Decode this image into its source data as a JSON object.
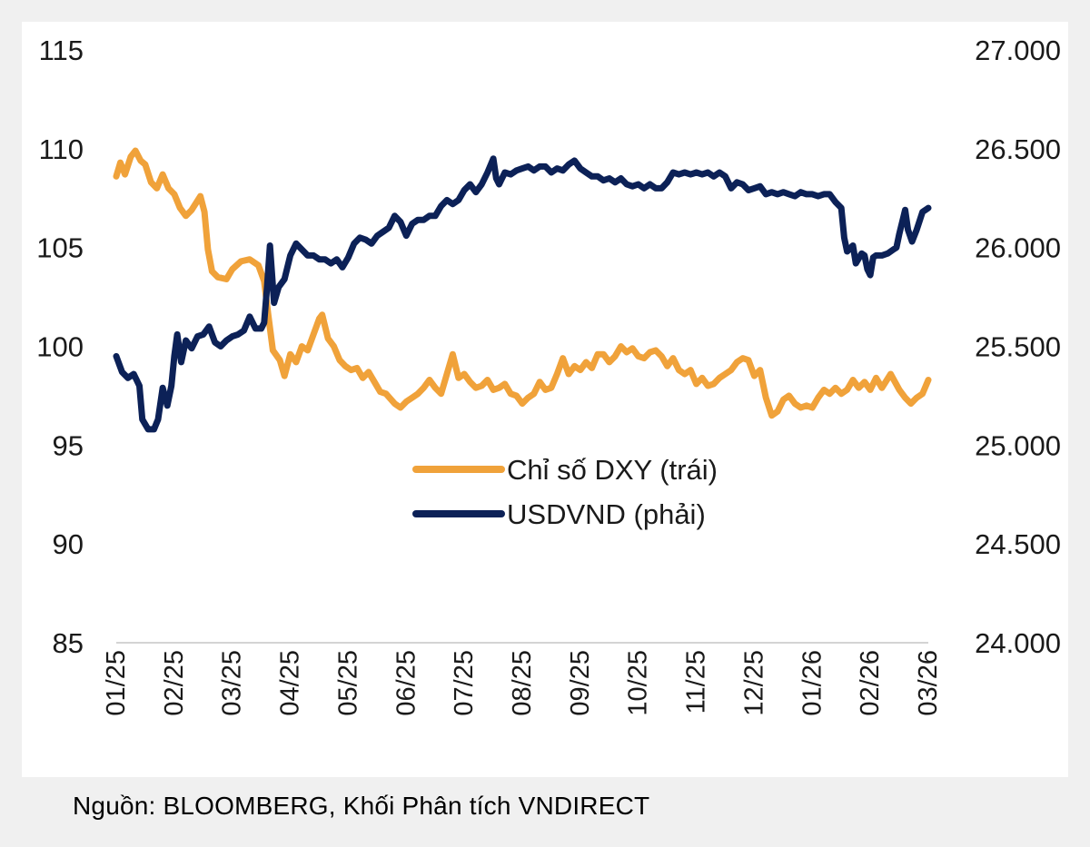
{
  "colors": {
    "dxy": "#f0a23a",
    "usdvnd": "#0c2157",
    "axis": "#d4d4d4",
    "text": "#1a1a1a"
  },
  "source": "Nguồn: BLOOMBERG, Khối Phân tích VNDIRECT",
  "chart_data": {
    "type": "line",
    "title": "",
    "x_tick_labels": [
      "01/25",
      "02/25",
      "03/25",
      "04/25",
      "05/25",
      "06/25",
      "07/25",
      "08/25",
      "09/25",
      "10/25",
      "11/25",
      "12/25",
      "01/26",
      "02/26",
      "03/26"
    ],
    "x_range": [
      0,
      14
    ],
    "y_left": {
      "range": [
        85,
        115
      ],
      "ticks": [
        85,
        90,
        95,
        100,
        105,
        110,
        115
      ],
      "tick_labels": [
        "85",
        "90",
        "95",
        "100",
        "105",
        "110",
        "115"
      ]
    },
    "y_right": {
      "range": [
        24000,
        27000
      ],
      "ticks": [
        24000,
        24500,
        25000,
        25500,
        26000,
        26500,
        27000
      ],
      "tick_labels": [
        "24.000",
        "24.500",
        "25.000",
        "25.500",
        "26.000",
        "26.500",
        "27.000"
      ]
    },
    "legend_position": "center",
    "series": [
      {
        "name": "Chỉ số DXY (trái)",
        "axis": "left",
        "color": "#f0a23a",
        "points": [
          [
            0.0,
            108.6
          ],
          [
            0.07,
            109.3
          ],
          [
            0.15,
            108.7
          ],
          [
            0.25,
            109.6
          ],
          [
            0.33,
            109.9
          ],
          [
            0.42,
            109.4
          ],
          [
            0.5,
            109.2
          ],
          [
            0.6,
            108.3
          ],
          [
            0.7,
            108.0
          ],
          [
            0.8,
            108.7
          ],
          [
            0.9,
            108.0
          ],
          [
            1.0,
            107.7
          ],
          [
            1.1,
            107.0
          ],
          [
            1.2,
            106.6
          ],
          [
            1.3,
            106.9
          ],
          [
            1.45,
            107.6
          ],
          [
            1.52,
            106.8
          ],
          [
            1.58,
            104.9
          ],
          [
            1.65,
            103.8
          ],
          [
            1.75,
            103.5
          ],
          [
            1.9,
            103.4
          ],
          [
            2.0,
            103.9
          ],
          [
            2.15,
            104.3
          ],
          [
            2.3,
            104.4
          ],
          [
            2.45,
            104.1
          ],
          [
            2.55,
            103.3
          ],
          [
            2.62,
            101.6
          ],
          [
            2.7,
            99.8
          ],
          [
            2.82,
            99.3
          ],
          [
            2.9,
            98.5
          ],
          [
            3.0,
            99.6
          ],
          [
            3.1,
            99.2
          ],
          [
            3.2,
            100.0
          ],
          [
            3.3,
            99.8
          ],
          [
            3.4,
            100.6
          ],
          [
            3.5,
            101.4
          ],
          [
            3.55,
            101.6
          ],
          [
            3.65,
            100.4
          ],
          [
            3.75,
            100.0
          ],
          [
            3.85,
            99.3
          ],
          [
            3.95,
            99.0
          ],
          [
            4.05,
            98.8
          ],
          [
            4.15,
            98.9
          ],
          [
            4.25,
            98.4
          ],
          [
            4.35,
            98.7
          ],
          [
            4.45,
            98.2
          ],
          [
            4.55,
            97.7
          ],
          [
            4.65,
            97.6
          ],
          [
            4.8,
            97.1
          ],
          [
            4.9,
            96.9
          ],
          [
            5.0,
            97.2
          ],
          [
            5.1,
            97.4
          ],
          [
            5.2,
            97.6
          ],
          [
            5.3,
            97.9
          ],
          [
            5.4,
            98.3
          ],
          [
            5.5,
            97.9
          ],
          [
            5.6,
            97.6
          ],
          [
            5.7,
            98.6
          ],
          [
            5.8,
            99.6
          ],
          [
            5.9,
            98.4
          ],
          [
            6.0,
            98.6
          ],
          [
            6.1,
            98.2
          ],
          [
            6.2,
            97.9
          ],
          [
            6.3,
            98.0
          ],
          [
            6.4,
            98.3
          ],
          [
            6.5,
            97.8
          ],
          [
            6.6,
            97.9
          ],
          [
            6.7,
            98.1
          ],
          [
            6.8,
            97.6
          ],
          [
            6.9,
            97.5
          ],
          [
            7.0,
            97.1
          ],
          [
            7.1,
            97.4
          ],
          [
            7.2,
            97.6
          ],
          [
            7.3,
            98.2
          ],
          [
            7.4,
            97.8
          ],
          [
            7.5,
            97.9
          ],
          [
            7.6,
            98.6
          ],
          [
            7.7,
            99.4
          ],
          [
            7.8,
            98.6
          ],
          [
            7.9,
            99.0
          ],
          [
            8.0,
            98.8
          ],
          [
            8.1,
            99.2
          ],
          [
            8.2,
            98.9
          ],
          [
            8.3,
            99.6
          ],
          [
            8.4,
            99.6
          ],
          [
            8.5,
            99.2
          ],
          [
            8.6,
            99.5
          ],
          [
            8.7,
            100.0
          ],
          [
            8.8,
            99.7
          ],
          [
            8.9,
            99.9
          ],
          [
            9.0,
            99.5
          ],
          [
            9.1,
            99.4
          ],
          [
            9.2,
            99.7
          ],
          [
            9.3,
            99.8
          ],
          [
            9.4,
            99.5
          ],
          [
            9.5,
            99.0
          ],
          [
            9.6,
            99.4
          ],
          [
            9.7,
            98.8
          ],
          [
            9.8,
            98.6
          ],
          [
            9.9,
            98.8
          ],
          [
            10.0,
            98.1
          ],
          [
            10.1,
            98.4
          ],
          [
            10.2,
            98.0
          ],
          [
            10.3,
            98.1
          ],
          [
            10.4,
            98.4
          ],
          [
            10.5,
            98.6
          ],
          [
            10.6,
            98.8
          ],
          [
            10.7,
            99.2
          ],
          [
            10.8,
            99.4
          ],
          [
            10.9,
            99.3
          ],
          [
            11.0,
            98.5
          ],
          [
            11.1,
            98.8
          ],
          [
            11.2,
            97.4
          ],
          [
            11.3,
            96.5
          ],
          [
            11.4,
            96.7
          ],
          [
            11.5,
            97.3
          ],
          [
            11.6,
            97.5
          ],
          [
            11.7,
            97.1
          ],
          [
            11.8,
            96.9
          ],
          [
            11.9,
            97.0
          ],
          [
            12.0,
            96.9
          ],
          [
            12.1,
            97.4
          ],
          [
            12.2,
            97.8
          ],
          [
            12.3,
            97.6
          ],
          [
            12.4,
            97.9
          ],
          [
            12.5,
            97.6
          ],
          [
            12.6,
            97.8
          ],
          [
            12.7,
            98.3
          ],
          [
            12.8,
            97.9
          ],
          [
            12.9,
            98.2
          ],
          [
            13.0,
            97.8
          ],
          [
            13.1,
            98.4
          ],
          [
            13.2,
            97.9
          ],
          [
            13.35,
            98.6
          ],
          [
            13.5,
            97.8
          ],
          [
            13.6,
            97.4
          ],
          [
            13.7,
            97.1
          ],
          [
            13.8,
            97.4
          ],
          [
            13.9,
            97.6
          ],
          [
            14.0,
            98.3
          ]
        ]
      },
      {
        "name": "USDVND (phải)",
        "axis": "right",
        "color": "#0c2157",
        "points": [
          [
            0.0,
            25450
          ],
          [
            0.1,
            25370
          ],
          [
            0.2,
            25340
          ],
          [
            0.3,
            25360
          ],
          [
            0.4,
            25300
          ],
          [
            0.45,
            25130
          ],
          [
            0.55,
            25080
          ],
          [
            0.65,
            25080
          ],
          [
            0.72,
            25130
          ],
          [
            0.8,
            25290
          ],
          [
            0.88,
            25200
          ],
          [
            0.95,
            25300
          ],
          [
            1.0,
            25450
          ],
          [
            1.05,
            25560
          ],
          [
            1.12,
            25420
          ],
          [
            1.2,
            25530
          ],
          [
            1.3,
            25490
          ],
          [
            1.4,
            25550
          ],
          [
            1.5,
            25560
          ],
          [
            1.6,
            25600
          ],
          [
            1.7,
            25520
          ],
          [
            1.8,
            25500
          ],
          [
            1.9,
            25530
          ],
          [
            2.0,
            25550
          ],
          [
            2.1,
            25560
          ],
          [
            2.2,
            25580
          ],
          [
            2.3,
            25650
          ],
          [
            2.4,
            25590
          ],
          [
            2.5,
            25590
          ],
          [
            2.55,
            25620
          ],
          [
            2.6,
            25800
          ],
          [
            2.65,
            26010
          ],
          [
            2.72,
            25720
          ],
          [
            2.8,
            25800
          ],
          [
            2.9,
            25840
          ],
          [
            3.0,
            25960
          ],
          [
            3.1,
            26020
          ],
          [
            3.2,
            25990
          ],
          [
            3.3,
            25960
          ],
          [
            3.4,
            25960
          ],
          [
            3.5,
            25940
          ],
          [
            3.6,
            25940
          ],
          [
            3.7,
            25920
          ],
          [
            3.8,
            25940
          ],
          [
            3.9,
            25900
          ],
          [
            4.0,
            25950
          ],
          [
            4.1,
            26020
          ],
          [
            4.2,
            26050
          ],
          [
            4.3,
            26040
          ],
          [
            4.4,
            26020
          ],
          [
            4.5,
            26060
          ],
          [
            4.6,
            26080
          ],
          [
            4.7,
            26100
          ],
          [
            4.8,
            26160
          ],
          [
            4.9,
            26130
          ],
          [
            5.0,
            26060
          ],
          [
            5.1,
            26120
          ],
          [
            5.2,
            26140
          ],
          [
            5.3,
            26140
          ],
          [
            5.4,
            26160
          ],
          [
            5.5,
            26160
          ],
          [
            5.6,
            26210
          ],
          [
            5.7,
            26240
          ],
          [
            5.8,
            26220
          ],
          [
            5.9,
            26240
          ],
          [
            6.0,
            26290
          ],
          [
            6.1,
            26320
          ],
          [
            6.2,
            26280
          ],
          [
            6.3,
            26320
          ],
          [
            6.4,
            26380
          ],
          [
            6.5,
            26450
          ],
          [
            6.55,
            26350
          ],
          [
            6.6,
            26320
          ],
          [
            6.7,
            26380
          ],
          [
            6.8,
            26370
          ],
          [
            6.9,
            26390
          ],
          [
            7.0,
            26400
          ],
          [
            7.1,
            26410
          ],
          [
            7.2,
            26390
          ],
          [
            7.3,
            26410
          ],
          [
            7.4,
            26410
          ],
          [
            7.5,
            26380
          ],
          [
            7.6,
            26400
          ],
          [
            7.7,
            26390
          ],
          [
            7.8,
            26420
          ],
          [
            7.9,
            26440
          ],
          [
            8.0,
            26400
          ],
          [
            8.1,
            26380
          ],
          [
            8.2,
            26360
          ],
          [
            8.3,
            26360
          ],
          [
            8.4,
            26340
          ],
          [
            8.5,
            26350
          ],
          [
            8.6,
            26330
          ],
          [
            8.7,
            26350
          ],
          [
            8.8,
            26320
          ],
          [
            8.9,
            26310
          ],
          [
            9.0,
            26320
          ],
          [
            9.1,
            26300
          ],
          [
            9.2,
            26320
          ],
          [
            9.3,
            26300
          ],
          [
            9.4,
            26300
          ],
          [
            9.5,
            26330
          ],
          [
            9.6,
            26380
          ],
          [
            9.7,
            26370
          ],
          [
            9.8,
            26380
          ],
          [
            9.9,
            26370
          ],
          [
            10.0,
            26380
          ],
          [
            10.1,
            26370
          ],
          [
            10.2,
            26380
          ],
          [
            10.3,
            26360
          ],
          [
            10.4,
            26380
          ],
          [
            10.5,
            26360
          ],
          [
            10.6,
            26300
          ],
          [
            10.7,
            26330
          ],
          [
            10.8,
            26320
          ],
          [
            10.9,
            26290
          ],
          [
            11.0,
            26300
          ],
          [
            11.1,
            26310
          ],
          [
            11.2,
            26270
          ],
          [
            11.3,
            26280
          ],
          [
            11.4,
            26270
          ],
          [
            11.5,
            26280
          ],
          [
            11.6,
            26270
          ],
          [
            11.7,
            26260
          ],
          [
            11.8,
            26280
          ],
          [
            11.9,
            26270
          ],
          [
            12.0,
            26270
          ],
          [
            12.1,
            26260
          ],
          [
            12.2,
            26270
          ],
          [
            12.3,
            26270
          ],
          [
            12.4,
            26230
          ],
          [
            12.5,
            26200
          ],
          [
            12.55,
            26050
          ],
          [
            12.6,
            25980
          ],
          [
            12.7,
            26010
          ],
          [
            12.75,
            25920
          ],
          [
            12.85,
            25970
          ],
          [
            12.9,
            25960
          ],
          [
            12.95,
            25890
          ],
          [
            13.0,
            25860
          ],
          [
            13.05,
            25950
          ],
          [
            13.1,
            25960
          ],
          [
            13.2,
            25960
          ],
          [
            13.3,
            25970
          ],
          [
            13.4,
            25990
          ],
          [
            13.45,
            26000
          ],
          [
            13.5,
            26070
          ],
          [
            13.55,
            26130
          ],
          [
            13.6,
            26190
          ],
          [
            13.65,
            26090
          ],
          [
            13.72,
            26030
          ],
          [
            13.8,
            26090
          ],
          [
            13.9,
            26180
          ],
          [
            14.0,
            26200
          ]
        ]
      }
    ]
  }
}
